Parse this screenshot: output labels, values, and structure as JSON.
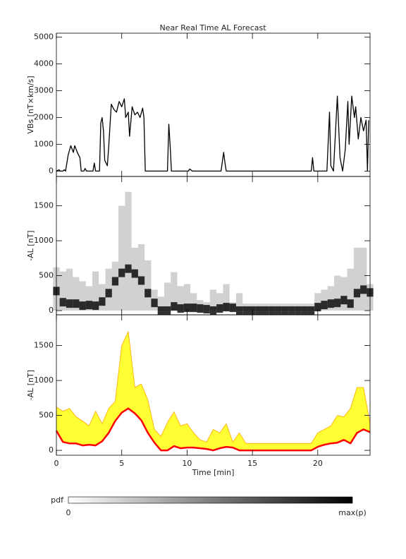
{
  "chart_data": [
    {
      "type": "line",
      "title": "Near Real Time AL Forecast",
      "ylabel": "VBs [nT×km/s]",
      "color": "#000000",
      "xlim": [
        0,
        24
      ],
      "xticks": [
        0,
        5,
        10,
        15,
        20
      ],
      "ylim": [
        -200,
        5150
      ],
      "yticks": [
        0,
        1000,
        2000,
        3000,
        4000,
        5000
      ],
      "x": [
        0,
        0.2,
        0.3,
        0.5,
        0.6,
        0.7,
        0.9,
        1.1,
        1.3,
        1.4,
        1.6,
        1.8,
        1.9,
        2.1,
        2.2,
        2.3,
        2.8,
        2.9,
        3.0,
        3.3,
        3.4,
        3.5,
        3.6,
        3.7,
        3.9,
        4.0,
        4.2,
        4.4,
        4.6,
        4.8,
        5.0,
        5.2,
        5.3,
        5.5,
        5.6,
        5.8,
        6.0,
        6.2,
        6.4,
        6.6,
        6.7,
        6.8,
        8.5,
        8.6,
        8.7,
        8.8,
        10.1,
        10.2,
        10.4,
        12.6,
        12.8,
        12.9,
        13.0,
        19.5,
        19.6,
        19.7,
        20.7,
        20.9,
        21.0,
        21.2,
        21.5,
        21.7,
        21.9,
        22.1,
        22.3,
        22.4,
        22.6,
        22.8,
        22.9,
        23.1,
        23.3,
        23.5,
        23.7,
        23.8,
        23.9
      ],
      "values": [
        0,
        50,
        0,
        0,
        50,
        0,
        600,
        950,
        700,
        950,
        700,
        500,
        0,
        0,
        100,
        0,
        0,
        300,
        0,
        0,
        1800,
        2000,
        1500,
        400,
        200,
        900,
        2500,
        2300,
        2200,
        2600,
        2400,
        2700,
        2000,
        2200,
        1300,
        2400,
        2100,
        2200,
        2000,
        2350,
        2000,
        0,
        0,
        1750,
        1000,
        0,
        0,
        80,
        0,
        0,
        700,
        300,
        0,
        0,
        500,
        0,
        0,
        2200,
        200,
        0,
        2800,
        500,
        0,
        800,
        2600,
        1000,
        2800,
        2000,
        2400,
        1200,
        2000,
        1500,
        1900,
        0,
        1900
      ]
    },
    {
      "type": "density",
      "ylabel": "-AL [nT]",
      "color": "#000000",
      "xlim": [
        0,
        24
      ],
      "xticks": [
        0,
        5,
        10,
        15,
        20
      ],
      "ylim": [
        -60,
        1920
      ],
      "yticks": [
        0,
        500,
        1000,
        1500
      ],
      "x": [
        0,
        0.5,
        1,
        1.5,
        2,
        2.5,
        3,
        3.5,
        4,
        4.5,
        5,
        5.5,
        6,
        6.5,
        7,
        7.5,
        8,
        8.5,
        9,
        9.5,
        10,
        10.5,
        11,
        11.5,
        12,
        12.5,
        13,
        13.5,
        14,
        14.5,
        15,
        15.5,
        16,
        16.5,
        17,
        17.5,
        18,
        18.5,
        19,
        19.5,
        20,
        20.5,
        21,
        21.5,
        22,
        22.5,
        23,
        23.5,
        24
      ],
      "median": [
        280,
        120,
        100,
        100,
        70,
        80,
        70,
        130,
        250,
        420,
        540,
        600,
        530,
        430,
        250,
        110,
        0,
        0,
        60,
        30,
        40,
        40,
        30,
        20,
        0,
        30,
        50,
        40,
        0,
        0,
        0,
        0,
        0,
        0,
        0,
        0,
        0,
        0,
        0,
        0,
        50,
        80,
        100,
        110,
        150,
        100,
        250,
        300,
        260
      ],
      "upper": [
        620,
        560,
        600,
        480,
        420,
        350,
        560,
        380,
        600,
        700,
        1500,
        1700,
        900,
        950,
        720,
        300,
        200,
        400,
        550,
        350,
        380,
        250,
        150,
        120,
        300,
        250,
        380,
        120,
        250,
        100,
        100,
        100,
        100,
        100,
        100,
        100,
        100,
        100,
        100,
        100,
        250,
        300,
        350,
        500,
        480,
        600,
        900,
        900,
        380
      ]
    },
    {
      "type": "band",
      "ylabel": "-AL [nT]",
      "xlabel": "Time [min]",
      "band_color": "#ffff33",
      "edge_color": "#ffa500",
      "color": "#ff0000",
      "xlim": [
        0,
        24
      ],
      "xticks": [
        0,
        5,
        10,
        15,
        20
      ],
      "ylim": [
        -70,
        1940
      ],
      "yticks": [
        0,
        500,
        1000,
        1500
      ],
      "x": [
        0,
        0.5,
        1,
        1.5,
        2,
        2.5,
        3,
        3.5,
        4,
        4.5,
        5,
        5.5,
        6,
        6.5,
        7,
        7.5,
        8,
        8.5,
        9,
        9.5,
        10,
        10.5,
        11,
        11.5,
        12,
        12.5,
        13,
        13.5,
        14,
        14.5,
        15,
        15.5,
        16,
        16.5,
        17,
        17.5,
        18,
        18.5,
        19,
        19.5,
        20,
        20.5,
        21,
        21.5,
        22,
        22.5,
        23,
        23.5,
        24
      ],
      "median": [
        280,
        120,
        100,
        100,
        70,
        80,
        70,
        130,
        250,
        420,
        540,
        600,
        530,
        430,
        250,
        110,
        0,
        0,
        60,
        30,
        40,
        40,
        30,
        20,
        0,
        30,
        50,
        40,
        0,
        0,
        0,
        0,
        0,
        0,
        0,
        0,
        0,
        0,
        0,
        0,
        50,
        80,
        100,
        110,
        150,
        100,
        250,
        300,
        260
      ],
      "upper": [
        620,
        560,
        600,
        480,
        420,
        350,
        560,
        380,
        600,
        700,
        1500,
        1700,
        900,
        950,
        720,
        300,
        200,
        400,
        550,
        350,
        380,
        250,
        150,
        120,
        300,
        250,
        380,
        120,
        250,
        100,
        100,
        100,
        100,
        100,
        100,
        100,
        100,
        100,
        100,
        100,
        250,
        300,
        350,
        500,
        480,
        600,
        900,
        900,
        380
      ]
    },
    {
      "type": "colorbar",
      "label": "pdf",
      "min_label": "0",
      "max_label": "max(p)"
    }
  ]
}
